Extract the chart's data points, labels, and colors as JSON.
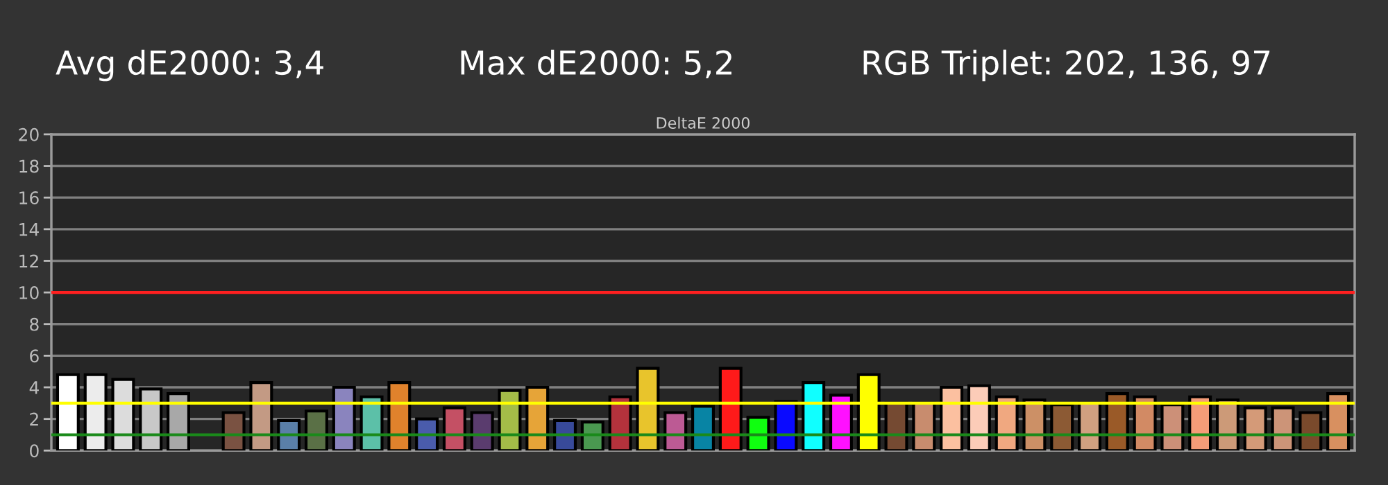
{
  "chart_data": {
    "type": "bar",
    "title": "DeltaE 2000",
    "annotations": [
      "Avg dE2000: 3,4",
      "Max dE2000: 5,2",
      "RGB Triplet: 202, 136, 97"
    ],
    "categories": [
      null,
      null,
      null,
      null,
      null,
      null,
      null,
      null,
      null,
      null,
      null,
      null,
      null,
      null,
      null,
      null,
      null,
      null,
      null,
      null,
      null,
      null,
      null,
      null,
      null,
      null,
      null,
      null,
      null,
      null,
      null,
      null,
      null,
      null,
      null,
      null,
      null,
      null,
      null,
      null,
      null,
      null,
      null,
      null,
      null,
      null,
      null
    ],
    "values": [
      4.8,
      4.8,
      4.5,
      3.9,
      3.6,
      null,
      2.4,
      4.3,
      1.9,
      2.5,
      4.0,
      3.4,
      4.3,
      2.0,
      2.7,
      2.4,
      3.8,
      4.0,
      1.9,
      1.8,
      3.4,
      5.2,
      2.4,
      2.8,
      5.2,
      2.1,
      3.1,
      4.3,
      3.5,
      4.8,
      3.0,
      3.0,
      4.0,
      4.1,
      3.4,
      3.2,
      2.9,
      3.0,
      3.6,
      3.4,
      2.9,
      3.4,
      3.2,
      2.7,
      2.7,
      2.4,
      3.6
    ],
    "colors": [
      "#ffffff",
      "#ececec",
      "#dcdcdc",
      "#c8c8c8",
      "#a8a8a8",
      "#000000",
      "#7a5242",
      "#c39a84",
      "#5a7fa8",
      "#5a7046",
      "#8a84be",
      "#5cc0a8",
      "#e0822c",
      "#4a5cac",
      "#c45064",
      "#5a3c6e",
      "#a4bc48",
      "#e6a438",
      "#384a9a",
      "#4a9850",
      "#b4323c",
      "#e8c42c",
      "#bc5a94",
      "#0884a4",
      "#ff1a1a",
      "#10ff10",
      "#0a0aff",
      "#10ffff",
      "#ff10ff",
      "#ffff00",
      "#754a32",
      "#c88c6e",
      "#fcc0a0",
      "#fcccb8",
      "#f0a880",
      "#cc9066",
      "#8c5a34",
      "#d0a080",
      "#9a5a28",
      "#d28a64",
      "#cc9078",
      "#f49c78",
      "#cc9a78",
      "#d49a78",
      "#cc9478",
      "#7a4a2c",
      "#d89060"
    ],
    "ylim": [
      0,
      20
    ],
    "yticks": [
      0,
      2,
      4,
      6,
      8,
      10,
      12,
      14,
      16,
      18,
      20
    ],
    "grid": "y",
    "ref_lines": [
      {
        "axis": "y",
        "value": 10,
        "color": "#ff2020"
      },
      {
        "axis": "y",
        "value": 3,
        "color": "#ffff00"
      },
      {
        "axis": "y",
        "value": 1,
        "color": "#1a8a1a"
      }
    ]
  }
}
